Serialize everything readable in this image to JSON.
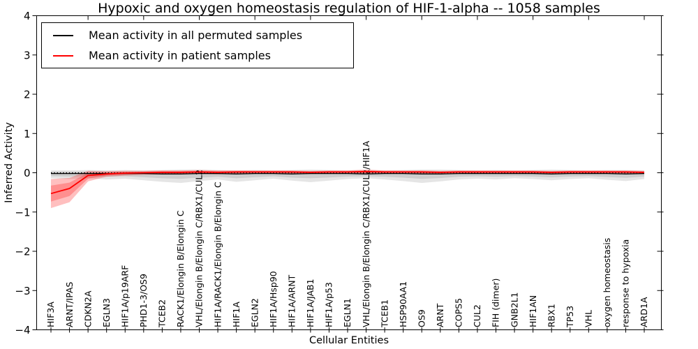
{
  "chart_data": {
    "type": "line",
    "title": "Hypoxic and oxygen homeostasis regulation of HIF-1-alpha -- 1058 samples",
    "xlabel": "Cellular Entities",
    "ylabel": "Inferred Activity",
    "ylim": [
      -4,
      4
    ],
    "yticks": [
      4,
      3,
      2,
      1,
      0,
      -1,
      -2,
      -3,
      -4
    ],
    "grid": false,
    "legend_position": "upper left",
    "reference_line": {
      "y": 0,
      "style": "dotted",
      "color": "#000000"
    },
    "categories": [
      "HIF3A",
      "ARNT/IPAS",
      "CDKN2A",
      "EGLN3",
      "HIF1A/p19ARF",
      "PHD1-3/OS9",
      "TCEB2",
      "RACK1/Elongin B/Elongin C",
      "VHL/Elongin B/Elongin C/RBX1/CUL2",
      "HIF1A/RACK1/Elongin B/Elongin C",
      "HIF1A",
      "EGLN2",
      "HIF1A/Hsp90",
      "HIF1A/ARNT",
      "HIF1A/JAB1",
      "HIF1A/p53",
      "EGLN1",
      "VHL/Elongin B/Elongin C/RBX1/CUL2/HIF1A",
      "TCEB1",
      "HSP90AA1",
      "OS9",
      "ARNT",
      "COPS5",
      "CUL2",
      "FIH (dimer)",
      "GNB2L1",
      "HIF1AN",
      "RBX1",
      "TP53",
      "VHL",
      "oxygen homeostasis",
      "response to hypoxia",
      "ARD1A"
    ],
    "series": [
      {
        "name": "Mean activity in all permuted samples",
        "color": "#000000",
        "band_color": "rgba(0,0,0,0.10)",
        "values": [
          -0.02,
          -0.02,
          -0.02,
          -0.02,
          -0.02,
          -0.02,
          -0.03,
          -0.03,
          -0.02,
          -0.02,
          -0.03,
          -0.02,
          -0.02,
          -0.03,
          -0.02,
          -0.02,
          -0.02,
          -0.03,
          -0.02,
          -0.02,
          -0.03,
          -0.03,
          -0.02,
          -0.02,
          -0.02,
          -0.02,
          -0.02,
          -0.03,
          -0.02,
          -0.02,
          -0.02,
          -0.03,
          -0.02
        ],
        "band_high": [
          0.06,
          0.06,
          0.07,
          0.06,
          0.07,
          0.06,
          0.07,
          0.08,
          0.08,
          0.07,
          0.06,
          0.07,
          0.06,
          0.07,
          0.08,
          0.07,
          0.06,
          0.07,
          0.06,
          0.07,
          0.08,
          0.08,
          0.07,
          0.06,
          0.07,
          0.06,
          0.07,
          0.08,
          0.07,
          0.06,
          0.07,
          0.07,
          0.06
        ],
        "band_low": [
          -0.14,
          -0.16,
          -0.14,
          -0.17,
          -0.15,
          -0.19,
          -0.23,
          -0.26,
          -0.21,
          -0.17,
          -0.23,
          -0.19,
          -0.15,
          -0.2,
          -0.24,
          -0.2,
          -0.16,
          -0.14,
          -0.17,
          -0.21,
          -0.26,
          -0.22,
          -0.17,
          -0.15,
          -0.17,
          -0.14,
          -0.16,
          -0.19,
          -0.16,
          -0.14,
          -0.18,
          -0.21,
          -0.16
        ]
      },
      {
        "name": "Mean activity in patient samples",
        "color": "#ff0000",
        "band_color": "rgba(255,0,0,0.25)",
        "values": [
          -0.53,
          -0.4,
          -0.07,
          -0.03,
          -0.01,
          0.0,
          0.01,
          0.01,
          0.02,
          0.01,
          0.02,
          0.02,
          0.02,
          0.02,
          0.01,
          0.02,
          0.02,
          0.03,
          0.02,
          0.02,
          0.02,
          0.01,
          0.02,
          0.02,
          0.02,
          0.02,
          0.02,
          0.01,
          0.02,
          0.02,
          0.02,
          0.02,
          0.01
        ],
        "band_high": [
          -0.16,
          -0.13,
          0.05,
          0.04,
          0.05,
          0.05,
          0.06,
          0.06,
          0.07,
          0.06,
          0.06,
          0.06,
          0.06,
          0.06,
          0.05,
          0.06,
          0.06,
          0.08,
          0.06,
          0.06,
          0.06,
          0.05,
          0.06,
          0.06,
          0.06,
          0.06,
          0.06,
          0.05,
          0.06,
          0.06,
          0.06,
          0.06,
          0.05
        ],
        "band_low": [
          -0.9,
          -0.75,
          -0.22,
          -0.1,
          -0.07,
          -0.05,
          -0.04,
          -0.04,
          -0.03,
          -0.04,
          -0.02,
          -0.02,
          -0.02,
          -0.02,
          -0.03,
          -0.02,
          -0.02,
          -0.02,
          -0.02,
          -0.02,
          -0.02,
          -0.03,
          -0.02,
          -0.02,
          -0.02,
          -0.02,
          -0.02,
          -0.03,
          -0.02,
          -0.02,
          -0.02,
          -0.02,
          -0.03
        ]
      }
    ]
  }
}
